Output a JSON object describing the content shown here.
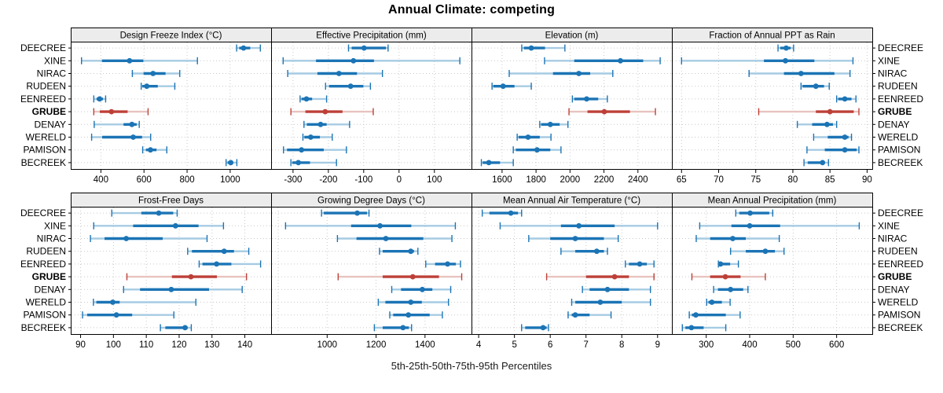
{
  "title": "Annual Climate: competing",
  "caption": "5th-25th-50th-75th-95th Percentiles",
  "sites": [
    "DEECREE",
    "XINE",
    "NIRAC",
    "RUDEEN",
    "EENREED",
    "GRUBE",
    "DENAY",
    "WERELD",
    "PAMISON",
    "BECREEK"
  ],
  "highlight_site": "GRUBE",
  "colors": {
    "series": "#1b74b5",
    "series_light": "#a6cbe3",
    "highlight": "#bd4038",
    "highlight_light": "#e8c3bf",
    "grid": "#c9c9c9",
    "strip_bg": "#ececec",
    "border": "#000000"
  },
  "chart_data": {
    "type": "dot-whisker-trellis",
    "layout": {
      "rows": 2,
      "cols": 4,
      "grid": "dotted",
      "free_x_scales": true
    },
    "percentile_labels": [
      "5th",
      "25th",
      "50th",
      "75th",
      "95th"
    ],
    "panels": [
      {
        "title": "Design Freeze Index (°C)",
        "xlim": [
          260,
          1190
        ],
        "ticks": [
          400,
          600,
          800,
          1000
        ],
        "values": [
          [
            1030,
            1042,
            1062,
            1093,
            1140
          ],
          [
            310,
            405,
            533,
            597,
            848
          ],
          [
            546,
            598,
            642,
            700,
            766
          ],
          [
            587,
            592,
            613,
            664,
            743
          ],
          [
            367,
            380,
            394,
            410,
            422
          ],
          [
            367,
            395,
            449,
            524,
            619
          ],
          [
            369,
            505,
            544,
            566,
            578
          ],
          [
            357,
            406,
            550,
            591,
            631
          ],
          [
            594,
            609,
            630,
            658,
            706
          ],
          [
            981,
            988,
            1003,
            1012,
            1031
          ]
        ]
      },
      {
        "title": "Effective Precipitation (mm)",
        "xlim": [
          -362,
          205
        ],
        "ticks": [
          -300,
          -200,
          -100,
          0,
          100
        ],
        "values": [
          [
            -143,
            -134,
            -99,
            -37,
            -31
          ],
          [
            -328,
            -235,
            -129,
            -71,
            172
          ],
          [
            -315,
            -231,
            -170,
            -119,
            -47
          ],
          [
            -208,
            -198,
            -137,
            -101,
            -81
          ],
          [
            -280,
            -276,
            -262,
            -246,
            -205
          ],
          [
            -306,
            -265,
            -209,
            -160,
            -73
          ],
          [
            -269,
            -261,
            -222,
            -205,
            -140
          ],
          [
            -272,
            -268,
            -250,
            -224,
            -189
          ],
          [
            -327,
            -317,
            -276,
            -213,
            -149
          ],
          [
            -306,
            -302,
            -285,
            -252,
            -177
          ]
        ]
      },
      {
        "title": "Elevation (m)",
        "xlim": [
          1420,
          2600
        ],
        "ticks": [
          1600,
          1800,
          2000,
          2200,
          2400
        ],
        "values": [
          [
            1716,
            1728,
            1772,
            1853,
            1970
          ],
          [
            1850,
            2025,
            2297,
            2431,
            2531
          ],
          [
            1642,
            1900,
            2052,
            2119,
            2252
          ],
          [
            1541,
            1548,
            1606,
            1673,
            1772
          ],
          [
            2014,
            2025,
            2098,
            2166,
            2220
          ],
          [
            1994,
            2103,
            2202,
            2353,
            2503
          ],
          [
            1822,
            1830,
            1884,
            1939,
            1988
          ],
          [
            1689,
            1697,
            1753,
            1822,
            1888
          ],
          [
            1666,
            1681,
            1806,
            1884,
            1947
          ],
          [
            1478,
            1486,
            1522,
            1588,
            1666
          ]
        ]
      },
      {
        "title": "Fraction of Annual PPT as Rain",
        "xlim": [
          63.7,
          90.7
        ],
        "ticks": [
          65,
          70,
          75,
          80,
          85,
          90
        ],
        "values": [
          [
            78.0,
            78.3,
            79.1,
            79.7,
            80.1
          ],
          [
            65.0,
            76.1,
            79.0,
            82.9,
            88.1
          ],
          [
            74.1,
            78.8,
            81.1,
            85.6,
            87.7
          ],
          [
            81.1,
            81.3,
            83.1,
            84.2,
            84.9
          ],
          [
            85.9,
            86.1,
            87.0,
            87.9,
            88.5
          ],
          [
            75.4,
            83.1,
            85.0,
            88.2,
            88.9
          ],
          [
            80.6,
            82.6,
            84.6,
            85.4,
            85.9
          ],
          [
            82.8,
            84.7,
            87.0,
            87.5,
            87.9
          ],
          [
            81.9,
            84.3,
            87.0,
            88.6,
            88.9
          ],
          [
            81.5,
            82.0,
            84.0,
            84.3,
            84.8
          ]
        ]
      },
      {
        "title": "Frost-Free Days",
        "xlim": [
          87,
          148
        ],
        "ticks": [
          90,
          100,
          110,
          120,
          130,
          140
        ],
        "values": [
          [
            99.5,
            108.5,
            113.8,
            118.2,
            119.4
          ],
          [
            94,
            106,
            118.9,
            125.9,
            133.5
          ],
          [
            93,
            97.3,
            103.9,
            115,
            128.5
          ],
          [
            122.6,
            123.9,
            133.7,
            136.7,
            141.2
          ],
          [
            126.1,
            127.1,
            131.4,
            135.9,
            144.8
          ],
          [
            104.1,
            117.8,
            123.6,
            131.5,
            140.5
          ],
          [
            103.1,
            108.1,
            117.6,
            129.1,
            139.2
          ],
          [
            93.9,
            94.8,
            99.8,
            101.9,
            125.1
          ],
          [
            90.6,
            92,
            100.9,
            105.7,
            118.4
          ],
          [
            114.3,
            115.8,
            121.8,
            122.6,
            123.7
          ]
        ]
      },
      {
        "title": "Growing Degree Days (°C)",
        "xlim": [
          771,
          1590
        ],
        "ticks": [
          1000,
          1200,
          1400
        ],
        "values": [
          [
            977,
            986,
            1123,
            1163,
            1171
          ],
          [
            830,
            1098,
            1216,
            1344,
            1524
          ],
          [
            1042,
            1120,
            1240,
            1393,
            1510
          ],
          [
            1214,
            1227,
            1342,
            1355,
            1371
          ],
          [
            1403,
            1441,
            1492,
            1526,
            1545
          ],
          [
            1045,
            1227,
            1350,
            1457,
            1550
          ],
          [
            1264,
            1302,
            1389,
            1430,
            1505
          ],
          [
            1209,
            1238,
            1342,
            1387,
            1496
          ],
          [
            1256,
            1270,
            1332,
            1419,
            1471
          ],
          [
            1193,
            1227,
            1310,
            1334,
            1345
          ]
        ]
      },
      {
        "title": "Mean Annual Air Temperature (°C)",
        "xlim": [
          3.8,
          9.4
        ],
        "ticks": [
          4,
          5,
          6,
          7,
          8,
          9
        ],
        "values": [
          [
            4.1,
            4.3,
            4.9,
            5.1,
            5.2
          ],
          [
            4.6,
            6.3,
            6.8,
            7.8,
            9.0
          ],
          [
            5.4,
            6.0,
            6.7,
            7.5,
            7.9
          ],
          [
            6.3,
            6.7,
            7.3,
            7.5,
            7.6
          ],
          [
            8.1,
            8.2,
            8.5,
            8.7,
            8.9
          ],
          [
            5.9,
            7.0,
            7.8,
            8.2,
            8.9
          ],
          [
            6.9,
            7.1,
            7.6,
            8.2,
            8.8
          ],
          [
            6.6,
            6.7,
            7.4,
            8.0,
            8.8
          ],
          [
            6.5,
            6.6,
            6.7,
            7.1,
            7.7
          ],
          [
            5.2,
            5.3,
            5.8,
            5.9,
            5.95
          ]
        ]
      },
      {
        "title": "Mean Annual Precipitation (mm)",
        "xlim": [
          221,
          682
        ],
        "ticks": [
          300,
          400,
          500,
          600
        ],
        "values": [
          [
            368,
            376,
            401,
            445,
            453
          ],
          [
            285,
            358,
            400,
            470,
            652
          ],
          [
            277,
            309,
            361,
            391,
            468
          ],
          [
            356,
            391,
            436,
            458,
            479
          ],
          [
            328,
            330,
            333,
            355,
            374
          ],
          [
            267,
            309,
            344,
            379,
            436
          ],
          [
            317,
            327,
            356,
            385,
            396
          ],
          [
            301,
            305,
            313,
            336,
            355
          ],
          [
            261,
            267,
            276,
            345,
            378
          ],
          [
            245,
            252,
            266,
            294,
            345
          ]
        ]
      }
    ]
  }
}
